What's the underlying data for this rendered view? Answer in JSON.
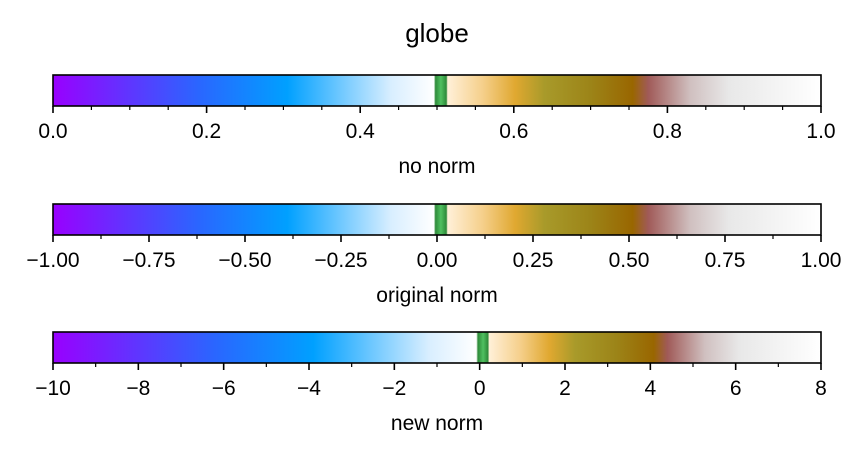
{
  "chart_data": {
    "type": "colorbar",
    "title": "globe",
    "colormap_stops": [
      {
        "pos": 0.0,
        "color": "#9900ff"
      },
      {
        "pos": 0.19,
        "color": "#2a66ff"
      },
      {
        "pos": 0.305,
        "color": "#00a0ff"
      },
      {
        "pos": 0.44,
        "color": "#d8eeff"
      },
      {
        "pos": 0.496,
        "color": "#ffffff"
      },
      {
        "pos": 0.498,
        "color": "#2e8b3a"
      },
      {
        "pos": 0.505,
        "color": "#50c060"
      },
      {
        "pos": 0.512,
        "color": "#2e8b3a"
      },
      {
        "pos": 0.514,
        "color": "#fff0d8"
      },
      {
        "pos": 0.56,
        "color": "#f5cf8a"
      },
      {
        "pos": 0.602,
        "color": "#e0a830"
      },
      {
        "pos": 0.64,
        "color": "#a89a2a"
      },
      {
        "pos": 0.7,
        "color": "#9c8418"
      },
      {
        "pos": 0.755,
        "color": "#996600"
      },
      {
        "pos": 0.775,
        "color": "#a05a58"
      },
      {
        "pos": 0.83,
        "color": "#d0c0c0"
      },
      {
        "pos": 0.88,
        "color": "#e8e8e8"
      },
      {
        "pos": 1.0,
        "color": "#ffffff"
      }
    ],
    "colorbars": [
      {
        "xlabel": "no norm",
        "xlim": [
          0,
          1
        ],
        "map_split": 0.5,
        "major_ticks": [
          0,
          0.2,
          0.4,
          0.6,
          0.8,
          1.0
        ],
        "major_labels": [
          "0.0",
          "0.2",
          "0.4",
          "0.6",
          "0.8",
          "1.0"
        ],
        "minor_step": 0.05
      },
      {
        "xlabel": "original norm",
        "xlim": [
          -1,
          1
        ],
        "map_split": 0.5,
        "major_ticks": [
          -1,
          -0.75,
          -0.5,
          -0.25,
          0,
          0.25,
          0.5,
          0.75,
          1
        ],
        "major_labels": [
          "−1.00",
          "−0.75",
          "−0.50",
          "−0.25",
          "0.00",
          "0.25",
          "0.50",
          "0.75",
          "1.00"
        ],
        "minor_step": 0.125
      },
      {
        "xlabel": "new norm",
        "xlim": [
          -10,
          8
        ],
        "map_split": 0.5556,
        "major_ticks": [
          -10,
          -8,
          -6,
          -4,
          -2,
          0,
          2,
          4,
          6,
          8
        ],
        "major_labels": [
          "−10",
          "−8",
          "−6",
          "−4",
          "−2",
          "0",
          "2",
          "4",
          "6",
          "8"
        ],
        "minor_step": 1
      }
    ]
  }
}
